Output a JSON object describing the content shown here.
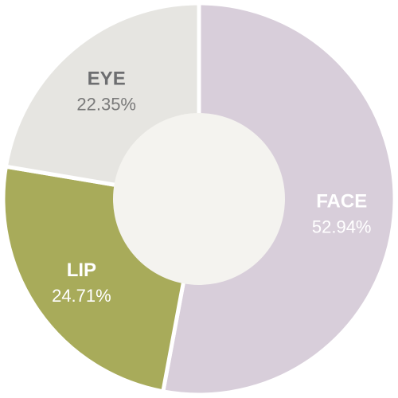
{
  "chart_data": {
    "type": "pie",
    "donut": true,
    "start_angle_deg": 0,
    "direction": "clockwise",
    "slices": [
      {
        "name": "FACE",
        "value": 52.94,
        "label": "52.94%",
        "color": "#d8ceda",
        "text_color_name": "#ffffff",
        "text_color_pct": "#ffffff"
      },
      {
        "name": "LIP",
        "value": 24.71,
        "label": "24.71%",
        "color": "#a8ab5a",
        "text_color_name": "#ffffff",
        "text_color_pct": "#ffffff"
      },
      {
        "name": "EYE",
        "value": 22.35,
        "label": "22.35%",
        "color": "#e6e5e1",
        "text_color_name": "#6d6e70",
        "text_color_pct": "#7a7a7a"
      }
    ],
    "hole_color": "#f4f3ef"
  }
}
